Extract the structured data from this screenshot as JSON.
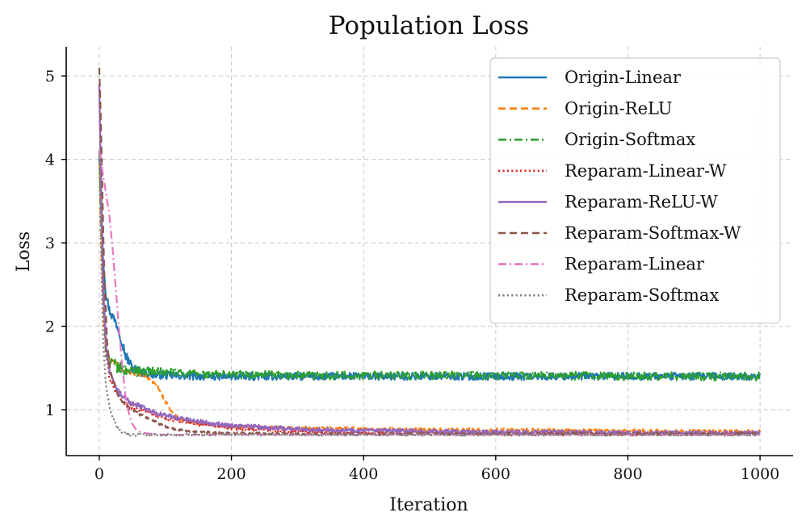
{
  "chart_data": {
    "type": "line",
    "title": "Population Loss",
    "xlabel": "Iteration",
    "ylabel": "Loss",
    "xlim": [
      -50,
      1050
    ],
    "ylim": [
      0.45,
      5.35
    ],
    "xticks": [
      0,
      200,
      400,
      600,
      800,
      1000
    ],
    "yticks": [
      1,
      2,
      3,
      4,
      5
    ],
    "grid": true,
    "legend_position": "top-right",
    "series": [
      {
        "name": "Origin-Linear",
        "color": "#1f77b4",
        "dash": "solid",
        "x": [
          0,
          3,
          6,
          10,
          15,
          20,
          25,
          30,
          35,
          40,
          50,
          60,
          80,
          100,
          150,
          200,
          300,
          400,
          500,
          600,
          700,
          800,
          900,
          1000
        ],
        "y": [
          4.1,
          3.4,
          2.8,
          2.4,
          2.2,
          2.12,
          2.05,
          1.95,
          1.8,
          1.65,
          1.5,
          1.45,
          1.42,
          1.41,
          1.4,
          1.4,
          1.4,
          1.4,
          1.4,
          1.4,
          1.4,
          1.4,
          1.4,
          1.4
        ],
        "noise": 0.045
      },
      {
        "name": "Origin-ReLU",
        "color": "#ff7f0e",
        "dash": "dashed",
        "x": [
          0,
          3,
          6,
          10,
          15,
          20,
          25,
          30,
          40,
          50,
          60,
          70,
          80,
          90,
          100,
          110,
          120,
          130,
          150,
          200,
          300,
          400,
          500,
          600,
          700,
          800,
          900,
          1000
        ],
        "y": [
          4.1,
          3.0,
          2.2,
          1.75,
          1.6,
          1.58,
          1.56,
          1.52,
          1.45,
          1.44,
          1.42,
          1.4,
          1.35,
          1.25,
          1.1,
          0.97,
          0.9,
          0.87,
          0.84,
          0.8,
          0.78,
          0.77,
          0.76,
          0.76,
          0.75,
          0.75,
          0.74,
          0.74
        ],
        "noise": 0.02
      },
      {
        "name": "Origin-Softmax",
        "color": "#2ca02c",
        "dash": "dashdot",
        "x": [
          0,
          3,
          5,
          8,
          10,
          15,
          20,
          30,
          40,
          60,
          80,
          100,
          150,
          200,
          300,
          400,
          500,
          600,
          700,
          800,
          900,
          1000
        ],
        "y": [
          4.1,
          3.3,
          2.7,
          2.0,
          1.7,
          1.6,
          1.55,
          1.5,
          1.48,
          1.47,
          1.46,
          1.45,
          1.43,
          1.42,
          1.41,
          1.41,
          1.41,
          1.41,
          1.41,
          1.4,
          1.4,
          1.4
        ],
        "noise": 0.05
      },
      {
        "name": "Reparam-Linear-W",
        "color": "#d62728",
        "dash": "dotted",
        "x": [
          0,
          3,
          6,
          10,
          15,
          20,
          30,
          40,
          60,
          80,
          100,
          150,
          200,
          300,
          400,
          500,
          600,
          700,
          800,
          900,
          1000
        ],
        "y": [
          4.9,
          3.5,
          2.4,
          1.7,
          1.4,
          1.28,
          1.15,
          1.07,
          1.0,
          0.95,
          0.9,
          0.82,
          0.78,
          0.74,
          0.72,
          0.72,
          0.71,
          0.71,
          0.71,
          0.71,
          0.71
        ],
        "noise": 0.02
      },
      {
        "name": "Reparam-ReLU-W",
        "color": "#9467bd",
        "dash": "solid",
        "x": [
          0,
          3,
          6,
          10,
          15,
          20,
          30,
          40,
          60,
          80,
          100,
          150,
          200,
          300,
          400,
          500,
          600,
          700,
          800,
          900,
          1000
        ],
        "y": [
          4.9,
          3.6,
          2.5,
          1.8,
          1.5,
          1.35,
          1.2,
          1.12,
          1.05,
          0.98,
          0.93,
          0.86,
          0.81,
          0.77,
          0.75,
          0.74,
          0.73,
          0.73,
          0.72,
          0.72,
          0.72
        ],
        "noise": 0.025
      },
      {
        "name": "Reparam-Softmax-W",
        "color": "#8c564b",
        "dash": "dashed",
        "x": [
          0,
          2,
          5,
          8,
          12,
          16,
          20,
          25,
          30,
          40,
          60,
          80,
          100,
          120,
          150,
          200,
          300,
          400,
          500,
          600,
          700,
          800,
          900,
          1000
        ],
        "y": [
          5.1,
          4.6,
          3.5,
          2.5,
          1.8,
          1.5,
          1.35,
          1.25,
          1.15,
          1.05,
          0.95,
          0.87,
          0.8,
          0.76,
          0.73,
          0.72,
          0.71,
          0.71,
          0.71,
          0.71,
          0.71,
          0.71,
          0.71,
          0.71
        ],
        "noise": 0.015
      },
      {
        "name": "Reparam-Linear",
        "color": "#e377c2",
        "dash": "dashdot",
        "x": [
          0,
          3,
          6,
          10,
          15,
          20,
          25,
          30,
          35,
          40,
          45,
          50,
          55,
          60,
          70,
          80,
          100,
          200,
          400,
          600,
          800,
          1000
        ],
        "y": [
          4.1,
          3.95,
          3.8,
          3.6,
          3.35,
          2.95,
          2.45,
          1.95,
          1.5,
          1.15,
          0.95,
          0.83,
          0.77,
          0.74,
          0.72,
          0.71,
          0.7,
          0.7,
          0.7,
          0.7,
          0.7,
          0.7
        ],
        "noise": 0.0
      },
      {
        "name": "Reparam-Softmax",
        "color": "#7f7f7f",
        "dash": "dotted",
        "x": [
          0,
          3,
          6,
          10,
          15,
          20,
          25,
          30,
          40,
          50,
          60,
          80,
          100,
          200,
          400,
          600,
          800,
          1000
        ],
        "y": [
          4.0,
          2.8,
          1.8,
          1.3,
          1.05,
          0.92,
          0.82,
          0.76,
          0.71,
          0.7,
          0.7,
          0.7,
          0.7,
          0.7,
          0.7,
          0.7,
          0.7,
          0.7
        ],
        "noise": 0.012
      }
    ]
  }
}
